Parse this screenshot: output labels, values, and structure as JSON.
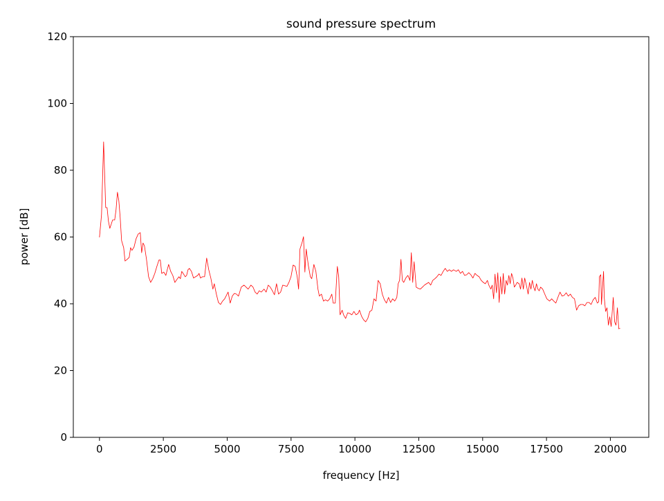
{
  "chart_data": {
    "type": "line",
    "title": "sound pressure spectrum",
    "xlabel": "frequency [Hz]",
    "ylabel": "power [dB]",
    "xlim": [
      -1024,
      21504
    ],
    "ylim": [
      0,
      120
    ],
    "xticks": [
      0,
      2500,
      5000,
      7500,
      10000,
      12500,
      15000,
      17500,
      20000
    ],
    "yticks": [
      0,
      20,
      40,
      60,
      80,
      100,
      120
    ],
    "grid": false,
    "line_color": "#ff0000",
    "x": [
      0,
      81,
      162,
      244,
      298,
      352,
      406,
      514,
      596,
      650,
      704,
      758,
      812,
      866,
      947,
      1002,
      1083,
      1164,
      1218,
      1272,
      1354,
      1435,
      1516,
      1597,
      1651,
      1705,
      1760,
      1841,
      1922,
      2003,
      2084,
      2166,
      2247,
      2328,
      2382,
      2436,
      2518,
      2599,
      2653,
      2707,
      2788,
      2869,
      2951,
      3032,
      3113,
      3167,
      3221,
      3275,
      3357,
      3411,
      3465,
      3519,
      3600,
      3682,
      3763,
      3844,
      3898,
      3952,
      4033,
      4115,
      4196,
      4277,
      4358,
      4439,
      4494,
      4575,
      4656,
      4737,
      4818,
      4900,
      4954,
      5035,
      5116,
      5197,
      5279,
      5360,
      5441,
      5549,
      5658,
      5739,
      5820,
      5928,
      6010,
      6091,
      6172,
      6253,
      6334,
      6443,
      6524,
      6605,
      6686,
      6768,
      6849,
      6930,
      7011,
      7092,
      7174,
      7255,
      7336,
      7417,
      7498,
      7580,
      7661,
      7742,
      7796,
      7850,
      7932,
      7986,
      8040,
      8094,
      8175,
      8256,
      8310,
      8392,
      8473,
      8554,
      8608,
      8689,
      8771,
      8852,
      8933,
      9014,
      9095,
      9150,
      9231,
      9312,
      9366,
      9420,
      9502,
      9556,
      9637,
      9718,
      9799,
      9881,
      9962,
      10043,
      10124,
      10178,
      10260,
      10341,
      10422,
      10503,
      10584,
      10666,
      10747,
      10828,
      10909,
      10990,
      11072,
      11153,
      11234,
      11315,
      11396,
      11478,
      11559,
      11640,
      11694,
      11748,
      11802,
      11857,
      11911,
      11992,
      12073,
      12154,
      12209,
      12263,
      12317,
      12398,
      12479,
      12560,
      12642,
      12723,
      12804,
      12885,
      12966,
      13048,
      13129,
      13210,
      13291,
      13372,
      13454,
      13535,
      13616,
      13697,
      13778,
      13860,
      13968,
      14049,
      14130,
      14211,
      14293,
      14374,
      14455,
      14536,
      14618,
      14699,
      14780,
      14861,
      14942,
      15024,
      15105,
      15186,
      15240,
      15321,
      15375,
      15430,
      15484,
      15538,
      15592,
      15646,
      15700,
      15754,
      15808,
      15862,
      15917,
      15971,
      16025,
      16079,
      16133,
      16187,
      16241,
      16295,
      16349,
      16431,
      16485,
      16539,
      16593,
      16647,
      16728,
      16783,
      16837,
      16891,
      16945,
      16999,
      17053,
      17107,
      17161,
      17216,
      17270,
      17351,
      17432,
      17513,
      17621,
      17703,
      17784,
      17865,
      17946,
      18027,
      18109,
      18190,
      18271,
      18352,
      18433,
      18515,
      18596,
      18677,
      18758,
      18839,
      18920,
      19003,
      19084,
      19165,
      19247,
      19328,
      19409,
      19490,
      19544,
      19572,
      19626,
      19653,
      19734,
      19761,
      19815,
      19869,
      19924,
      19978,
      20032,
      20113,
      20167,
      20221,
      20275,
      20330,
      20384
    ],
    "y": [
      59.9,
      66.7,
      88.5,
      68.8,
      68.8,
      64.7,
      62.6,
      65.1,
      65.1,
      68.2,
      73.4,
      70.9,
      65.7,
      58.9,
      56.8,
      52.8,
      53.3,
      53.9,
      56.8,
      56.0,
      57.0,
      59.5,
      60.9,
      61.3,
      55.3,
      58.2,
      57.4,
      53.3,
      48.1,
      46.4,
      47.5,
      49.1,
      51.2,
      53.1,
      53.1,
      49.1,
      49.5,
      48.5,
      50.2,
      51.8,
      49.7,
      48.5,
      46.4,
      47.3,
      48.1,
      47.5,
      49.7,
      49.1,
      48.1,
      48.5,
      50.2,
      50.6,
      49.7,
      47.7,
      48.1,
      48.5,
      49.1,
      47.7,
      48.1,
      48.1,
      53.7,
      50.2,
      47.7,
      44.4,
      46.0,
      42.9,
      40.4,
      39.8,
      40.8,
      41.5,
      42.3,
      43.5,
      40.2,
      42.3,
      43.1,
      42.9,
      42.3,
      45.0,
      45.6,
      45.0,
      44.4,
      45.6,
      45.0,
      43.5,
      42.9,
      43.9,
      43.5,
      44.4,
      43.5,
      45.6,
      45.0,
      43.9,
      42.7,
      46.0,
      42.9,
      43.5,
      45.6,
      45.4,
      45.2,
      46.4,
      48.1,
      51.6,
      51.2,
      48.1,
      44.4,
      56.4,
      58.4,
      60.1,
      49.5,
      56.4,
      51.6,
      48.1,
      47.5,
      51.8,
      49.7,
      44.4,
      42.3,
      42.9,
      40.8,
      41.2,
      40.8,
      41.5,
      42.9,
      40.2,
      40.2,
      51.2,
      48.1,
      36.7,
      38.1,
      36.7,
      35.6,
      37.3,
      37.1,
      36.7,
      37.7,
      36.7,
      37.1,
      38.1,
      36.3,
      35.2,
      34.6,
      35.6,
      37.7,
      38.1,
      41.5,
      40.8,
      47.0,
      46.0,
      42.9,
      41.2,
      40.2,
      41.9,
      40.4,
      41.5,
      40.8,
      41.9,
      46.0,
      47.0,
      53.3,
      47.0,
      46.4,
      47.7,
      48.5,
      47.0,
      55.3,
      46.4,
      52.6,
      45.0,
      44.6,
      44.4,
      45.0,
      45.6,
      46.0,
      46.4,
      45.6,
      47.0,
      47.5,
      48.1,
      48.9,
      48.5,
      49.7,
      50.6,
      49.7,
      50.2,
      49.7,
      50.2,
      49.7,
      50.2,
      49.1,
      49.7,
      48.5,
      48.7,
      49.3,
      48.7,
      47.7,
      49.1,
      48.5,
      48.1,
      47.0,
      46.4,
      46.0,
      47.0,
      45.6,
      44.4,
      45.6,
      41.5,
      48.9,
      43.3,
      49.3,
      40.4,
      48.1,
      42.9,
      49.1,
      42.9,
      47.0,
      45.6,
      48.5,
      46.0,
      49.1,
      47.7,
      45.0,
      45.6,
      46.4,
      46.0,
      44.4,
      47.7,
      44.4,
      47.7,
      45.0,
      42.9,
      46.4,
      44.4,
      47.0,
      45.0,
      43.9,
      46.0,
      44.4,
      43.9,
      45.0,
      44.4,
      42.9,
      41.5,
      40.8,
      41.5,
      40.8,
      40.2,
      41.9,
      43.5,
      42.3,
      42.5,
      43.3,
      42.3,
      42.9,
      41.9,
      41.5,
      38.1,
      39.4,
      39.8,
      39.8,
      39.4,
      40.4,
      40.4,
      39.8,
      41.2,
      41.9,
      40.2,
      40.6,
      48.1,
      48.7,
      39.8,
      49.7,
      41.9,
      37.7,
      38.8,
      33.6,
      36.1,
      33.2,
      41.9,
      34.6,
      33.6,
      38.8,
      32.5,
      32.7
    ]
  }
}
